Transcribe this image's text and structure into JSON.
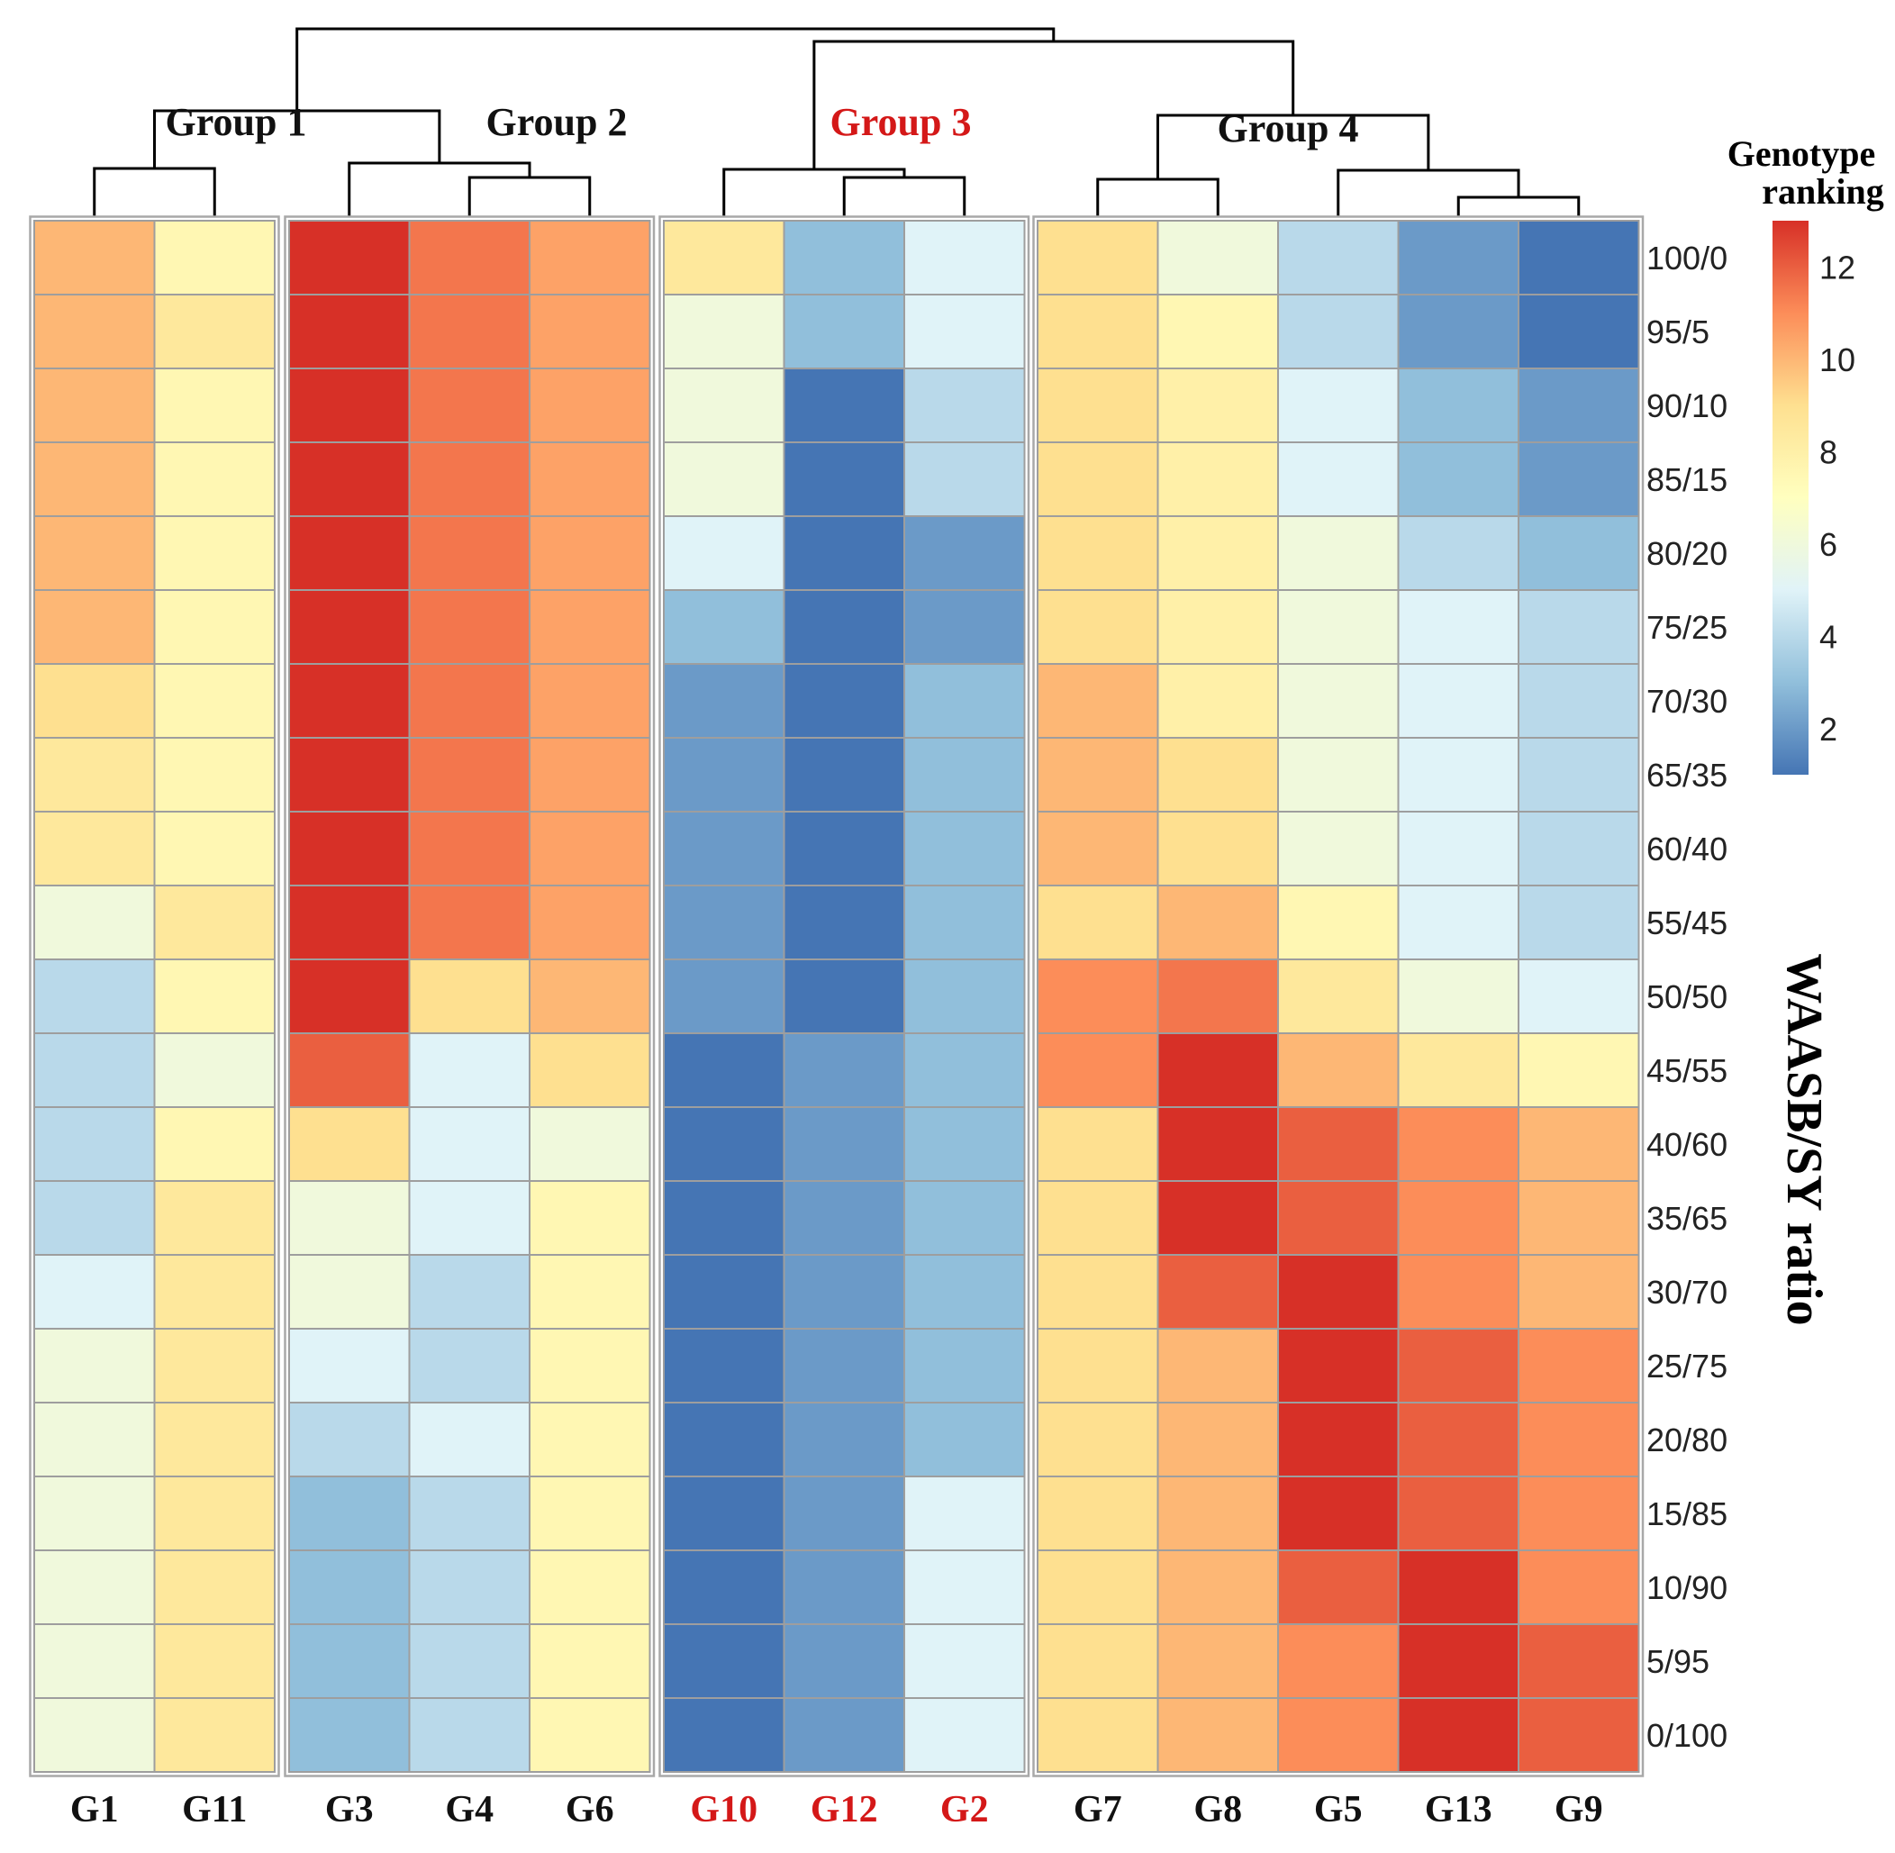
{
  "chart_data": {
    "type": "heatmap",
    "title": "",
    "columns": [
      "G1",
      "G11",
      "G3",
      "G4",
      "G6",
      "G10",
      "G12",
      "G2",
      "G7",
      "G8",
      "G5",
      "G13",
      "G9"
    ],
    "column_colors": [
      "#111111",
      "#111111",
      "#111111",
      "#111111",
      "#111111",
      "#d41818",
      "#d41818",
      "#d41818",
      "#111111",
      "#111111",
      "#111111",
      "#111111",
      "#111111"
    ],
    "rows": [
      "100/0",
      "95/5",
      "90/10",
      "85/15",
      "80/20",
      "75/25",
      "70/30",
      "65/35",
      "60/40",
      "55/45",
      "50/50",
      "45/55",
      "40/60",
      "35/65",
      "30/70",
      "25/75",
      "20/80",
      "15/85",
      "10/90",
      "5/95",
      "0/100"
    ],
    "ylabel": "WAASB/SY ratio",
    "groups": [
      {
        "label": "Group 1",
        "color": "#111111",
        "columns": [
          "G1",
          "G11"
        ]
      },
      {
        "label": "Group 2",
        "color": "#111111",
        "columns": [
          "G3",
          "G4",
          "G6"
        ]
      },
      {
        "label": "Group 3",
        "color": "#d41818",
        "columns": [
          "G10",
          "G12",
          "G2"
        ]
      },
      {
        "label": "Group 4",
        "color": "#111111",
        "columns": [
          "G7",
          "G8",
          "G5",
          "G13",
          "G9"
        ]
      }
    ],
    "values": [
      [
        10,
        7.5,
        13,
        11.5,
        10.5,
        8.5,
        3,
        5,
        9,
        6,
        4,
        2,
        1
      ],
      [
        10,
        8.5,
        13,
        11.5,
        10.5,
        6,
        3,
        5,
        9,
        7.5,
        4,
        2,
        1
      ],
      [
        10,
        7.5,
        13,
        11.5,
        10.5,
        6,
        1,
        4,
        9,
        8,
        5,
        3,
        2
      ],
      [
        10,
        7.5,
        13,
        11.5,
        10.5,
        6,
        1,
        4,
        9,
        8,
        5,
        3,
        2
      ],
      [
        10,
        7.5,
        13,
        11.5,
        10.5,
        5,
        1,
        2,
        9,
        8,
        6,
        4,
        3
      ],
      [
        10,
        7.5,
        13,
        11.5,
        10.5,
        3,
        1,
        2,
        9,
        8,
        6,
        5,
        4
      ],
      [
        9,
        7.5,
        13,
        11.5,
        10.5,
        2,
        1,
        3,
        10,
        8,
        6,
        5,
        4
      ],
      [
        8.5,
        7.5,
        13,
        11.5,
        10.5,
        2,
        1,
        3,
        10,
        9,
        6,
        5,
        4
      ],
      [
        8.5,
        7.5,
        13,
        11.5,
        10.5,
        2,
        1,
        3,
        10,
        9,
        6,
        5,
        4
      ],
      [
        6,
        8.5,
        13,
        11.5,
        10.5,
        2,
        1,
        3,
        9,
        10,
        7.5,
        5,
        4
      ],
      [
        4,
        7.5,
        13,
        9,
        10,
        2,
        1,
        3,
        11,
        11.5,
        8.5,
        6,
        5
      ],
      [
        4,
        6,
        12,
        5,
        9,
        1,
        2,
        3,
        11,
        13,
        10,
        8.5,
        7.5
      ],
      [
        4,
        7.5,
        9,
        5,
        6,
        1,
        2,
        3,
        9,
        13,
        12,
        11,
        10
      ],
      [
        4,
        8.5,
        6,
        5,
        7.5,
        1,
        2,
        3,
        9,
        13,
        12,
        11,
        10
      ],
      [
        5,
        8.5,
        6,
        4,
        7.5,
        1,
        2,
        3,
        9,
        12,
        13,
        11,
        10
      ],
      [
        6,
        8.5,
        5,
        4,
        7.5,
        1,
        2,
        3,
        9,
        10,
        13,
        12,
        11
      ],
      [
        6,
        8.5,
        4,
        5,
        7.5,
        1,
        2,
        3,
        9,
        10,
        13,
        12,
        11
      ],
      [
        6,
        8.5,
        3,
        4,
        7.5,
        1,
        2,
        5,
        9,
        10,
        13,
        12,
        11
      ],
      [
        6,
        8.5,
        3,
        4,
        7.5,
        1,
        2,
        5,
        9,
        10,
        12,
        13,
        11
      ],
      [
        6,
        8.5,
        3,
        4,
        7.5,
        1,
        2,
        5,
        9,
        10,
        11,
        13,
        12
      ],
      [
        6,
        8.5,
        3,
        4,
        7.5,
        1,
        2,
        5,
        9,
        10,
        11,
        13,
        12
      ]
    ],
    "colorbar": {
      "title": [
        "Genotype",
        "ranking"
      ],
      "range": [
        1,
        13
      ],
      "ticks": [
        12,
        10,
        8,
        6,
        4,
        2
      ]
    },
    "palette": [
      "#4575b4",
      "#91bfdb",
      "#e0f3f8",
      "#ffffbf",
      "#fee090",
      "#fc8d59",
      "#d73027"
    ]
  }
}
